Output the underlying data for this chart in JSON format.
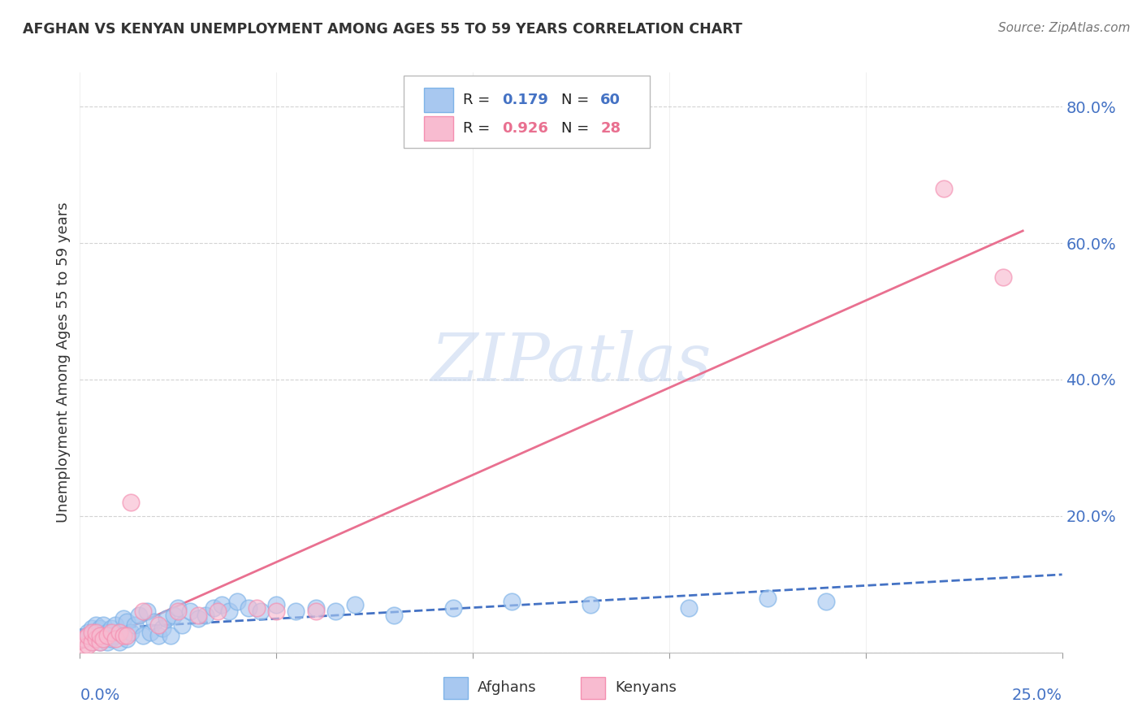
{
  "title": "AFGHAN VS KENYAN UNEMPLOYMENT AMONG AGES 55 TO 59 YEARS CORRELATION CHART",
  "source": "Source: ZipAtlas.com",
  "ylabel": "Unemployment Among Ages 55 to 59 years",
  "xlim": [
    0.0,
    0.25
  ],
  "ylim": [
    0.0,
    0.85
  ],
  "ytick_vals": [
    0.0,
    0.2,
    0.4,
    0.6,
    0.8
  ],
  "ytick_labels": [
    "",
    "20.0%",
    "40.0%",
    "60.0%",
    "80.0%"
  ],
  "watermark_text": "ZIPatlas",
  "legend_afghan_r": "0.179",
  "legend_afghan_n": "60",
  "legend_kenyan_r": "0.926",
  "legend_kenyan_n": "28",
  "afghan_face_color": "#A8C8F0",
  "afghan_edge_color": "#7EB3E8",
  "kenyan_face_color": "#F8BBD0",
  "kenyan_edge_color": "#F48FB1",
  "afghan_line_color": "#4472C4",
  "kenyan_line_color": "#E97090",
  "watermark_color": "#C8D8F0",
  "grid_color": "#C8C8C8",
  "title_color": "#333333",
  "label_color": "#333333",
  "tick_color": "#4472C4",
  "source_color": "#777777",
  "background_color": "#FFFFFF",
  "afghan_x": [
    0.001,
    0.002,
    0.002,
    0.003,
    0.003,
    0.003,
    0.004,
    0.004,
    0.004,
    0.005,
    0.005,
    0.005,
    0.006,
    0.006,
    0.007,
    0.007,
    0.008,
    0.008,
    0.009,
    0.009,
    0.01,
    0.01,
    0.011,
    0.012,
    0.012,
    0.013,
    0.014,
    0.015,
    0.016,
    0.017,
    0.018,
    0.019,
    0.02,
    0.021,
    0.022,
    0.023,
    0.024,
    0.025,
    0.026,
    0.028,
    0.03,
    0.032,
    0.034,
    0.036,
    0.038,
    0.04,
    0.043,
    0.046,
    0.05,
    0.055,
    0.06,
    0.065,
    0.07,
    0.08,
    0.095,
    0.11,
    0.13,
    0.155,
    0.175,
    0.19
  ],
  "afghan_y": [
    0.02,
    0.025,
    0.03,
    0.015,
    0.025,
    0.035,
    0.02,
    0.03,
    0.04,
    0.015,
    0.025,
    0.035,
    0.02,
    0.04,
    0.015,
    0.03,
    0.02,
    0.035,
    0.025,
    0.04,
    0.015,
    0.03,
    0.05,
    0.02,
    0.045,
    0.03,
    0.04,
    0.055,
    0.025,
    0.06,
    0.03,
    0.045,
    0.025,
    0.035,
    0.05,
    0.025,
    0.055,
    0.065,
    0.04,
    0.06,
    0.05,
    0.055,
    0.065,
    0.07,
    0.06,
    0.075,
    0.065,
    0.06,
    0.07,
    0.06,
    0.065,
    0.06,
    0.07,
    0.055,
    0.065,
    0.075,
    0.07,
    0.065,
    0.08,
    0.075
  ],
  "kenyan_x": [
    0.001,
    0.001,
    0.002,
    0.002,
    0.003,
    0.003,
    0.004,
    0.004,
    0.005,
    0.005,
    0.006,
    0.007,
    0.008,
    0.009,
    0.01,
    0.011,
    0.012,
    0.013,
    0.016,
    0.02,
    0.025,
    0.03,
    0.035,
    0.045,
    0.05,
    0.06,
    0.22,
    0.235
  ],
  "kenyan_y": [
    0.01,
    0.02,
    0.01,
    0.025,
    0.015,
    0.03,
    0.02,
    0.03,
    0.015,
    0.025,
    0.02,
    0.025,
    0.03,
    0.02,
    0.03,
    0.025,
    0.025,
    0.22,
    0.06,
    0.04,
    0.06,
    0.055,
    0.06,
    0.065,
    0.06,
    0.06,
    0.68,
    0.55
  ]
}
